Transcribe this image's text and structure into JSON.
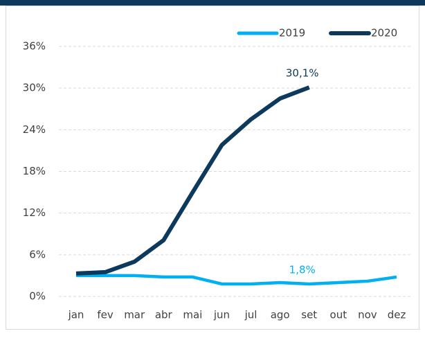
{
  "chart_data": {
    "type": "line",
    "categories": [
      "jan",
      "fev",
      "mar",
      "abr",
      "mai",
      "jun",
      "jul",
      "ago",
      "set",
      "out",
      "nov",
      "dez"
    ],
    "series": [
      {
        "name": "2019",
        "color": "#00b0f0",
        "values": [
          3.0,
          3.0,
          3.0,
          2.8,
          2.8,
          1.8,
          1.8,
          2.0,
          1.8,
          2.0,
          2.2,
          2.8
        ],
        "value_labels": [
          null,
          null,
          null,
          null,
          null,
          null,
          null,
          null,
          "1,8%",
          null,
          null,
          null
        ]
      },
      {
        "name": "2020",
        "color": "#0d3a5c",
        "values": [
          3.3,
          3.5,
          5.0,
          8.1,
          15.0,
          21.8,
          25.5,
          28.5,
          30.1,
          null,
          null,
          null
        ],
        "value_labels": [
          null,
          null,
          null,
          null,
          null,
          null,
          null,
          null,
          "30,1%",
          null,
          null,
          null
        ]
      }
    ],
    "ylim": [
      0,
      36
    ],
    "yticks": [
      {
        "value": 0,
        "label": "0%"
      },
      {
        "value": 6,
        "label": "6%"
      },
      {
        "value": 12,
        "label": "12%"
      },
      {
        "value": 18,
        "label": "18%"
      },
      {
        "value": 24,
        "label": "24%"
      },
      {
        "value": 30,
        "label": "30%"
      },
      {
        "value": 36,
        "label": "36%"
      }
    ],
    "grid": true,
    "legend": "top-right"
  }
}
